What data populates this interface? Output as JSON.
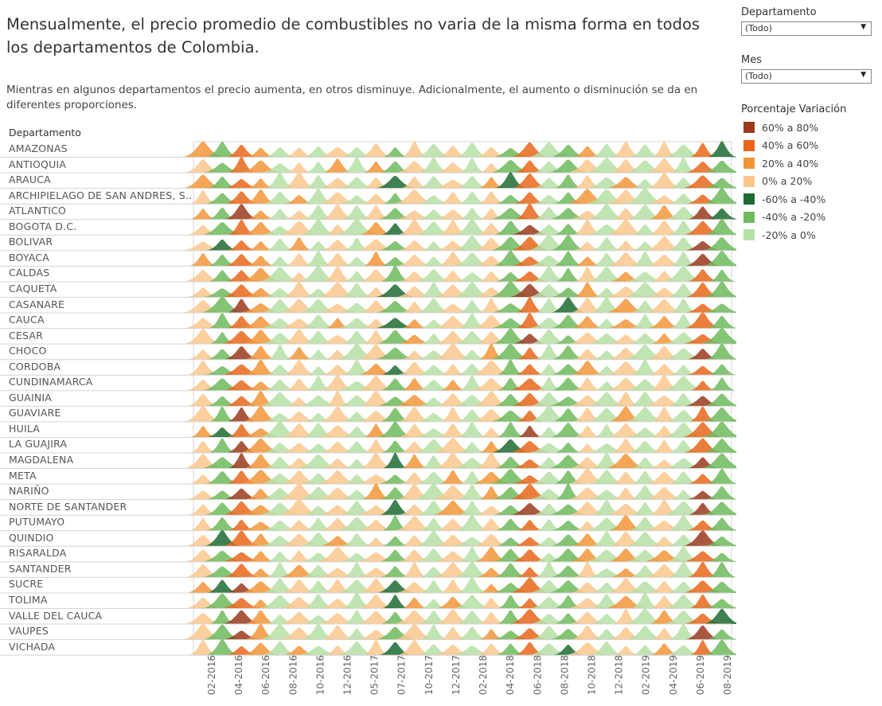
{
  "title": "Mensualmente, el precio promedio de combustibles no varia de la misma forma en todos los departamentos de Colombia.",
  "subtitle": "Mientras en algunos departamentos el precio  aumenta, en otros disminuye. Adicionalmente, el aumento o disminución se da en diferentes proporciones.",
  "filters": {
    "departamento": {
      "label": "Departamento",
      "value": "(Todo)"
    },
    "mes": {
      "label": "Mes",
      "value": "(Todo)"
    }
  },
  "legend": {
    "title": "Porcentaje Variación",
    "items": [
      {
        "label": "60% a 80%",
        "color": "#9b3a1e"
      },
      {
        "label": "40% a 60%",
        "color": "#e8671a"
      },
      {
        "label": "20% a 40%",
        "color": "#f29538"
      },
      {
        "label": "0% a 20%",
        "color": "#fbc78d"
      },
      {
        "label": "-60% a -40%",
        "color": "#1d6b33"
      },
      {
        "label": "-40% a -20%",
        "color": "#6fba5d"
      },
      {
        "label": "-20% a 0%",
        "color": "#b5e0a6"
      }
    ]
  },
  "chart_data": {
    "type": "area",
    "row_header": "Departamento",
    "rows": [
      "AMAZONAS",
      "ANTIOQUIA",
      "ARAUCA",
      "ARCHIPIELAGO DE SAN ANDRES, S..",
      "ATLANTICO",
      "BOGOTA D.C.",
      "BOLIVAR",
      "BOYACA",
      "CALDAS",
      "CAQUETA",
      "CASANARE",
      "CAUCA",
      "CESAR",
      "CHOCO",
      "CORDOBA",
      "CUNDINAMARCA",
      "GUAINIA",
      "GUAVIARE",
      "HUILA",
      "LA GUAJIRA",
      "MAGDALENA",
      "META",
      "NARIÑO",
      "NORTE DE SANTANDER",
      "PUTUMAYO",
      "QUINDIO",
      "RISARALDA",
      "SANTANDER",
      "SUCRE",
      "TOLIMA",
      "VALLE DEL CAUCA",
      "VAUPES",
      "VICHADA"
    ],
    "x_ticks": [
      "02-2016",
      "04-2016",
      "06-2016",
      "08-2016",
      "10-2016",
      "12-2016",
      "05-2017",
      "07-2017",
      "10-2017",
      "12-2017",
      "02-2018",
      "04-2018",
      "06-2018",
      "08-2018",
      "10-2018",
      "12-2018",
      "02-2019",
      "04-2019",
      "06-2019",
      "08-2019"
    ],
    "column_category": [
      "0% a 20%",
      "-40% a -20%",
      "40% a 60%",
      "20% a 40%",
      "-20% a 0%",
      "0% a 20%",
      "-20% a 0%",
      "0% a 20%",
      "-20% a 0%",
      "0% a 20%",
      "-40% a -20%",
      "0% a 20%",
      "-20% a 0%",
      "0% a 20%",
      "-20% a 0%",
      "0% a 20%",
      "-40% a -20%",
      "40% a 60%",
      "-20% a 0%",
      "-40% a -20%",
      "0% a 20%",
      "-20% a 0%",
      "0% a 20%",
      "-20% a 0%",
      "0% a 20%",
      "-20% a 0%",
      "40% a 60%",
      "-40% a -20%"
    ],
    "note_categories": [
      "60% a 80%",
      "40% a 60%",
      "20% a 40%",
      "0% a 20%",
      "-60% a -40%",
      "-40% a -20%",
      "-20% a 0%"
    ]
  }
}
